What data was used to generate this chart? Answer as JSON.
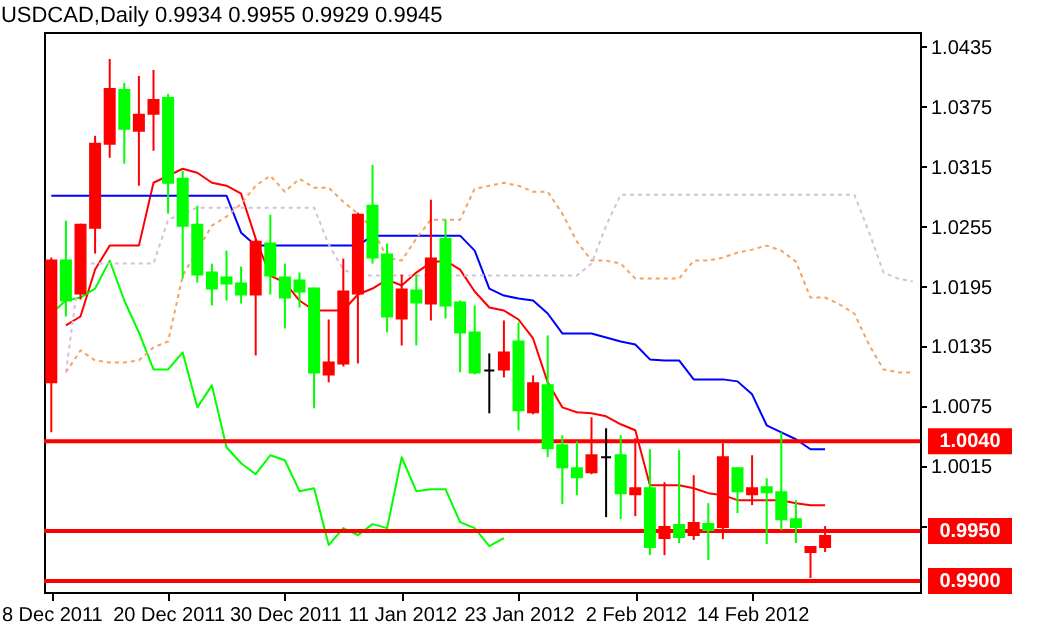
{
  "chart_data": {
    "type": "candlestick",
    "title": "USDCAD,Daily 0.9934 0.9955 0.9929 0.9945",
    "categories": [
      "8 Dec 2011",
      null,
      null,
      null,
      null,
      null,
      null,
      null,
      "20 Dec 2011",
      null,
      null,
      null,
      null,
      null,
      null,
      null,
      "30 Dec 2011",
      null,
      null,
      null,
      null,
      null,
      null,
      null,
      "11 Jan 2012",
      null,
      null,
      null,
      null,
      null,
      null,
      null,
      "23 Jan 2012",
      null,
      null,
      null,
      null,
      null,
      null,
      null,
      "2 Feb 2012",
      null,
      null,
      null,
      null,
      null,
      null,
      null,
      "14 Feb 2012",
      null,
      null,
      null,
      null,
      null,
      null,
      null,
      null,
      null,
      null,
      null
    ],
    "ohlc": [
      [
        1.0099,
        1.0224,
        1.0049,
        1.0221
      ],
      [
        1.0221,
        1.0261,
        1.0165,
        1.0181
      ],
      [
        1.0188,
        1.0258,
        1.0182,
        1.0257
      ],
      [
        1.0254,
        1.0346,
        1.0228,
        1.0338
      ],
      [
        1.0338,
        1.0423,
        1.0324,
        1.0393
      ],
      [
        1.0392,
        1.0399,
        1.0318,
        1.0353
      ],
      [
        1.0351,
        1.0406,
        1.0296,
        1.0367
      ],
      [
        1.0368,
        1.0412,
        1.0331,
        1.0382
      ],
      [
        1.0384,
        1.0388,
        1.0268,
        1.0299
      ],
      [
        1.0303,
        1.0311,
        1.0203,
        1.0256
      ],
      [
        1.0257,
        1.0276,
        1.0199,
        1.0207
      ],
      [
        1.0209,
        1.0218,
        1.0176,
        1.0193
      ],
      [
        1.0204,
        1.0231,
        1.0181,
        1.0198
      ],
      [
        1.0198,
        1.0215,
        1.0178,
        1.0187
      ],
      [
        1.0187,
        1.0243,
        1.0126,
        1.024
      ],
      [
        1.0238,
        1.0267,
        1.0187,
        1.0206
      ],
      [
        1.0204,
        1.0218,
        1.0153,
        1.0184
      ],
      [
        1.0201,
        1.0209,
        1.0174,
        1.019
      ],
      [
        1.0193,
        1.0194,
        1.0073,
        1.0109
      ],
      [
        1.0107,
        1.0162,
        1.0099,
        1.0119
      ],
      [
        1.0118,
        1.0223,
        1.0115,
        1.019
      ],
      [
        1.0188,
        1.0269,
        1.0118,
        1.0267
      ],
      [
        1.0276,
        1.0317,
        1.0218,
        1.0224
      ],
      [
        1.0227,
        1.0238,
        1.0149,
        1.0165
      ],
      [
        1.0163,
        1.0207,
        1.0136,
        1.0192
      ],
      [
        1.0191,
        1.0207,
        1.0136,
        1.0179
      ],
      [
        1.0178,
        1.0282,
        1.0161,
        1.0223
      ],
      [
        1.0243,
        1.0262,
        1.0163,
        1.0176
      ],
      [
        1.0179,
        1.0181,
        1.0109,
        1.0149
      ],
      [
        1.0149,
        1.0176,
        1.0107,
        1.0109
      ],
      [
        1.0111,
        1.0128,
        1.0068,
        1.0111
      ],
      [
        1.0112,
        1.0161,
        1.0104,
        1.0129
      ],
      [
        1.014,
        1.0159,
        1.0051,
        1.0071
      ],
      [
        1.0069,
        1.0106,
        1.0067,
        1.0098
      ],
      [
        1.0096,
        1.0146,
        1.0024,
        1.0033
      ],
      [
        1.0036,
        1.0046,
        0.9977,
        1.0014
      ],
      [
        1.0013,
        1.004,
        0.9986,
        1.0004
      ],
      [
        1.0009,
        1.0064,
        1.0007,
        1.0026
      ],
      [
        1.0024,
        1.0053,
        0.9964,
        1.0024
      ],
      [
        1.0026,
        1.0046,
        0.9962,
        0.9988
      ],
      [
        0.9987,
        1.0043,
        0.9965,
        0.9993
      ],
      [
        0.9993,
        1.0032,
        0.9926,
        0.9934
      ],
      [
        0.9943,
        0.9999,
        0.9926,
        0.9954
      ],
      [
        0.9956,
        1.0031,
        0.9938,
        0.9944
      ],
      [
        0.9946,
        1.0006,
        0.9941,
        0.9958
      ],
      [
        0.9957,
        0.9978,
        0.9921,
        0.9951
      ],
      [
        0.9954,
        1.0038,
        0.9942,
        1.0024
      ],
      [
        1.0013,
        1.0014,
        0.9968,
        0.999
      ],
      [
        0.9987,
        1.0026,
        0.9976,
        0.9993
      ],
      [
        0.9994,
        1.0003,
        0.9937,
        0.9989
      ],
      [
        0.9989,
        1.0049,
        0.9951,
        0.9962
      ],
      [
        0.9962,
        0.9981,
        0.9938,
        0.9954
      ],
      [
        0.9929,
        0.9935,
        0.9903,
        0.9934
      ],
      [
        0.9934,
        0.9955,
        0.9929,
        0.9945
      ],
      null,
      null,
      null,
      null,
      null,
      null
    ],
    "colors": [
      "#ff0000",
      "#00ff00",
      "#ff0000",
      "#ff0000",
      "#ff0000",
      "#00ff00",
      "#ff0000",
      "#ff0000",
      "#00ff00",
      "#00ff00",
      "#00ff00",
      "#00ff00",
      "#00ff00",
      "#00ff00",
      "#ff0000",
      "#00ff00",
      "#00ff00",
      "#00ff00",
      "#00ff00",
      "#ff0000",
      "#ff0000",
      "#ff0000",
      "#00ff00",
      "#00ff00",
      "#ff0000",
      "#00ff00",
      "#ff0000",
      "#00ff00",
      "#00ff00",
      "#00ff00",
      "#000000",
      "#ff0000",
      "#00ff00",
      "#ff0000",
      "#00ff00",
      "#00ff00",
      "#00ff00",
      "#ff0000",
      "#000000",
      "#00ff00",
      "#ff0000",
      "#00ff00",
      "#ff0000",
      "#00ff00",
      "#ff0000",
      "#00ff00",
      "#ff0000",
      "#00ff00",
      "#ff0000",
      "#00ff00",
      "#00ff00",
      "#00ff00",
      "#ff0000",
      "#ff0000",
      null,
      null,
      null,
      null,
      null,
      null
    ],
    "series": [
      {
        "type": "line",
        "color": "#ff0000",
        "values": [
          null,
          1.0156,
          1.0165,
          1.0212,
          1.0236,
          1.0236,
          1.0236,
          1.0299,
          1.0306,
          1.0313,
          1.0309,
          1.0299,
          1.0296,
          1.0288,
          1.0243,
          1.0206,
          1.0199,
          1.0181,
          1.0171,
          1.0171,
          1.0171,
          1.0187,
          1.0193,
          1.0202,
          1.0196,
          1.0209,
          1.0219,
          1.0221,
          1.0212,
          1.019,
          1.0174,
          1.0171,
          1.0162,
          1.0143,
          1.0099,
          1.0074,
          1.0069,
          1.0068,
          1.0065,
          1.0057,
          1.0051,
          0.9996,
          0.9996,
          0.9996,
          0.9993,
          0.9988,
          0.9986,
          0.9981,
          0.9981,
          0.9981,
          0.9981,
          0.9978,
          0.9976,
          0.9976,
          null,
          null,
          null,
          null,
          null,
          null
        ]
      },
      {
        "type": "line",
        "color": "#0000ff",
        "values": [
          1.0286,
          1.0286,
          1.0286,
          1.0286,
          1.0286,
          1.0286,
          1.0286,
          1.0286,
          1.0286,
          1.0286,
          1.0286,
          1.0286,
          1.0286,
          1.0249,
          1.0236,
          1.0236,
          1.0236,
          1.0236,
          1.0236,
          1.0236,
          1.0236,
          1.0236,
          1.0246,
          1.0246,
          1.0246,
          1.0246,
          1.0246,
          1.0246,
          1.0246,
          1.0231,
          1.0193,
          1.0186,
          1.0183,
          1.0181,
          1.0168,
          1.0148,
          1.0148,
          1.0148,
          1.0144,
          1.014,
          1.0137,
          1.0122,
          1.0121,
          1.0121,
          1.0102,
          1.0102,
          1.0102,
          1.01,
          1.0087,
          1.0056,
          1.0049,
          1.0042,
          1.0032,
          1.0032,
          null,
          null,
          null,
          null,
          null,
          null
        ]
      },
      {
        "type": "line",
        "color": "#00ff00",
        "values": [
          1.0168,
          1.0181,
          1.0184,
          1.0193,
          1.0221,
          1.0181,
          1.0149,
          1.0112,
          1.0112,
          1.0129,
          1.0074,
          1.0096,
          1.0034,
          1.0018,
          1.0007,
          1.0026,
          1.0021,
          0.999,
          0.9993,
          0.9936,
          0.9953,
          0.9946,
          0.9957,
          0.9953,
          1.0024,
          0.999,
          0.9992,
          0.9992,
          0.9959,
          0.9953,
          0.9935,
          0.9943,
          null,
          null,
          null,
          null,
          null,
          null,
          null,
          null,
          null,
          null,
          null,
          null,
          null,
          null,
          null,
          null,
          null,
          null,
          null,
          null,
          null,
          null,
          null,
          null,
          null,
          null,
          null,
          null
        ]
      },
      {
        "type": "line",
        "color": "#f4a460",
        "line_style": "dashed",
        "values": [
          null,
          1.0109,
          1.0131,
          1.0121,
          1.0119,
          1.0119,
          1.0121,
          1.0134,
          1.014,
          1.0206,
          null,
          1.0256,
          1.0265,
          1.0278,
          1.0296,
          1.0306,
          1.029,
          1.0303,
          1.0294,
          1.0294,
          1.028,
          1.0268,
          1.0253,
          1.0224,
          1.0221,
          1.0243,
          1.0262,
          1.0262,
          1.0262,
          1.0293,
          1.0296,
          1.0299,
          1.0296,
          1.029,
          1.029,
          1.0268,
          1.024,
          1.0221,
          1.0221,
          1.0218,
          1.0203,
          1.0203,
          1.0203,
          1.0203,
          1.0221,
          1.0221,
          1.0224,
          1.0229,
          1.0232,
          1.0236,
          1.0231,
          1.022,
          1.0184,
          1.0184,
          1.0177,
          1.0168,
          1.0137,
          1.0112,
          1.0109,
          1.0109
        ]
      },
      {
        "type": "line",
        "color": "#d8bfd8",
        "line_style": "dashed",
        "values": [
          null,
          1.0109,
          1.0218,
          1.0218,
          1.0218,
          1.0218,
          1.0218,
          1.0218,
          1.0262,
          null,
          1.0274,
          1.0274,
          1.0274,
          1.0274,
          1.0274,
          1.0274,
          1.0274,
          1.0274,
          1.0274,
          1.0237,
          1.0212,
          1.0206,
          1.0206,
          1.0206,
          1.0206,
          1.0206,
          1.0206,
          1.0206,
          1.0206,
          1.0206,
          1.0206,
          1.0206,
          1.0206,
          1.0206,
          1.0206,
          1.0206,
          1.0206,
          1.0218,
          1.0256,
          1.0287,
          1.0287,
          1.0287,
          1.0287,
          1.0287,
          1.0287,
          1.0287,
          1.0287,
          1.0287,
          1.0287,
          1.0287,
          1.0287,
          1.0287,
          1.0287,
          1.0287,
          1.0287,
          1.0287,
          1.025,
          1.0209,
          1.0203,
          1.02
        ]
      }
    ],
    "ylim": [
      0.9889,
      1.045
    ],
    "yticks": [
      {
        "value": 0.9955,
        "label": null
      },
      1.0015,
      1.0075,
      1.0135,
      1.0195,
      1.0255,
      1.0315,
      1.0375,
      1.0435
    ],
    "ref_lines": [
      {
        "axis": "y",
        "value": 1.004,
        "label": "1.0040",
        "color": "#ff0000"
      },
      {
        "axis": "y",
        "value": 0.995,
        "label": "0.9950",
        "color": "#ff0000"
      },
      {
        "axis": "y",
        "value": 0.99,
        "label": "0.9900",
        "color": "#ff0000"
      }
    ]
  }
}
